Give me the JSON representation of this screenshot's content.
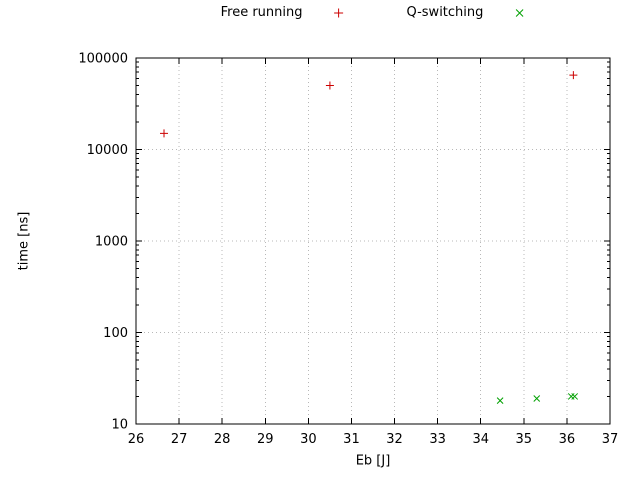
{
  "chart_data": {
    "type": "scatter",
    "title": "",
    "xlabel": "Eb [J]",
    "ylabel": "time [ns]",
    "xlim": [
      26,
      37
    ],
    "ylim": [
      10,
      100000
    ],
    "yscale": "log",
    "grid": true,
    "legend_position": "top-center",
    "x_ticks": [
      26,
      27,
      28,
      29,
      30,
      31,
      32,
      33,
      34,
      35,
      36,
      37
    ],
    "y_ticks": [
      10,
      100,
      1000,
      10000,
      100000
    ],
    "series": [
      {
        "name": "Free running",
        "marker": "plus",
        "color": "#cc0000",
        "points": [
          [
            26.65,
            15000
          ],
          [
            30.5,
            50000
          ],
          [
            36.15,
            65000
          ]
        ]
      },
      {
        "name": "Q-switching",
        "marker": "cross",
        "color": "#00a000",
        "points": [
          [
            34.45,
            18
          ],
          [
            35.3,
            19
          ],
          [
            36.1,
            20
          ],
          [
            36.18,
            20
          ]
        ]
      }
    ]
  }
}
